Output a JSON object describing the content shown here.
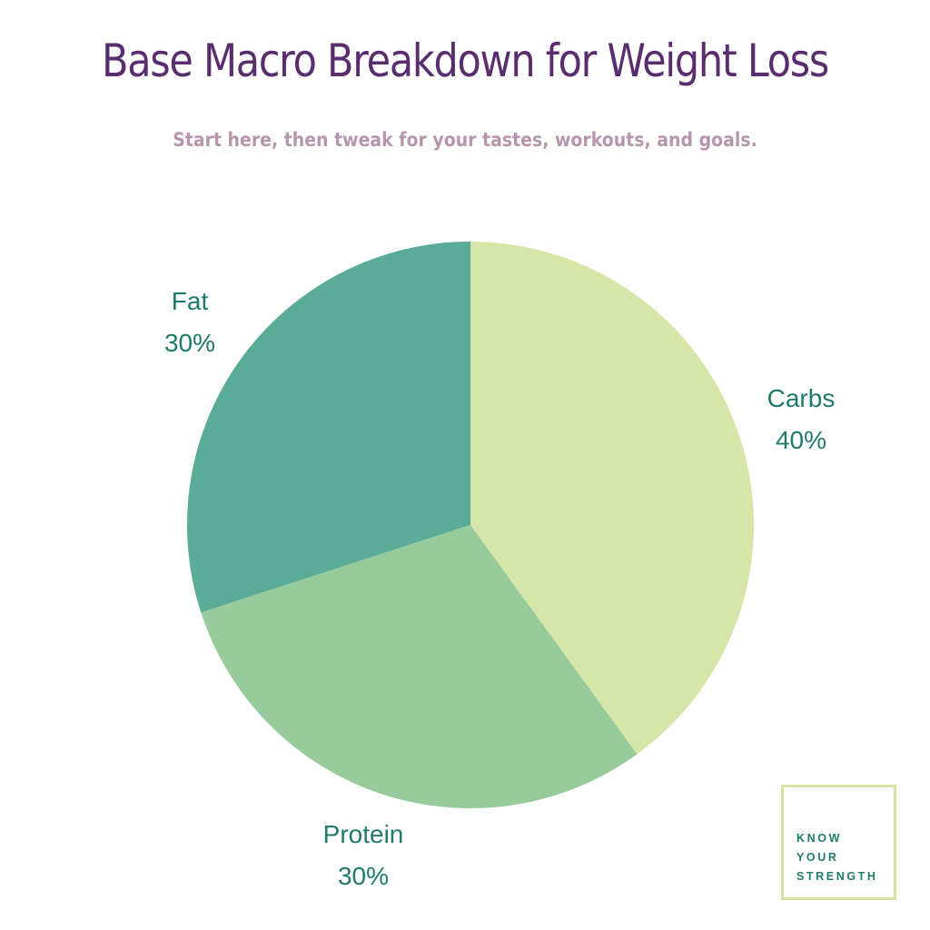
{
  "header": {
    "title": "Base Macro Breakdown for Weight Loss",
    "subtitle": "Start here, then tweak for your tastes, workouts, and goals."
  },
  "chart_data": {
    "type": "pie",
    "title": "Base Macro Breakdown for Weight Loss",
    "subtitle": "Start here, then tweak for your tastes, workouts, and goals.",
    "slices": [
      {
        "label": "Carbs",
        "value": 40,
        "value_label": "40%",
        "color": "#d5e6a8"
      },
      {
        "label": "Protein",
        "value": 30,
        "value_label": "30%",
        "color": "#97cb9c"
      },
      {
        "label": "Fat",
        "value": 30,
        "value_label": "30%",
        "color": "#5aac98"
      }
    ],
    "start_angle": "12 o'clock",
    "direction": "clockwise",
    "legend": "none",
    "label_placement": "outside"
  },
  "colors": {
    "title": "#5a2d6e",
    "subtitle": "#b596ad",
    "labels": "#1f7a6c",
    "logo_border": "#d4e49e",
    "logo_text": "#1f7a6c"
  },
  "logo": {
    "lines": [
      "KNOW",
      "YOUR",
      "STRENGTH"
    ]
  }
}
